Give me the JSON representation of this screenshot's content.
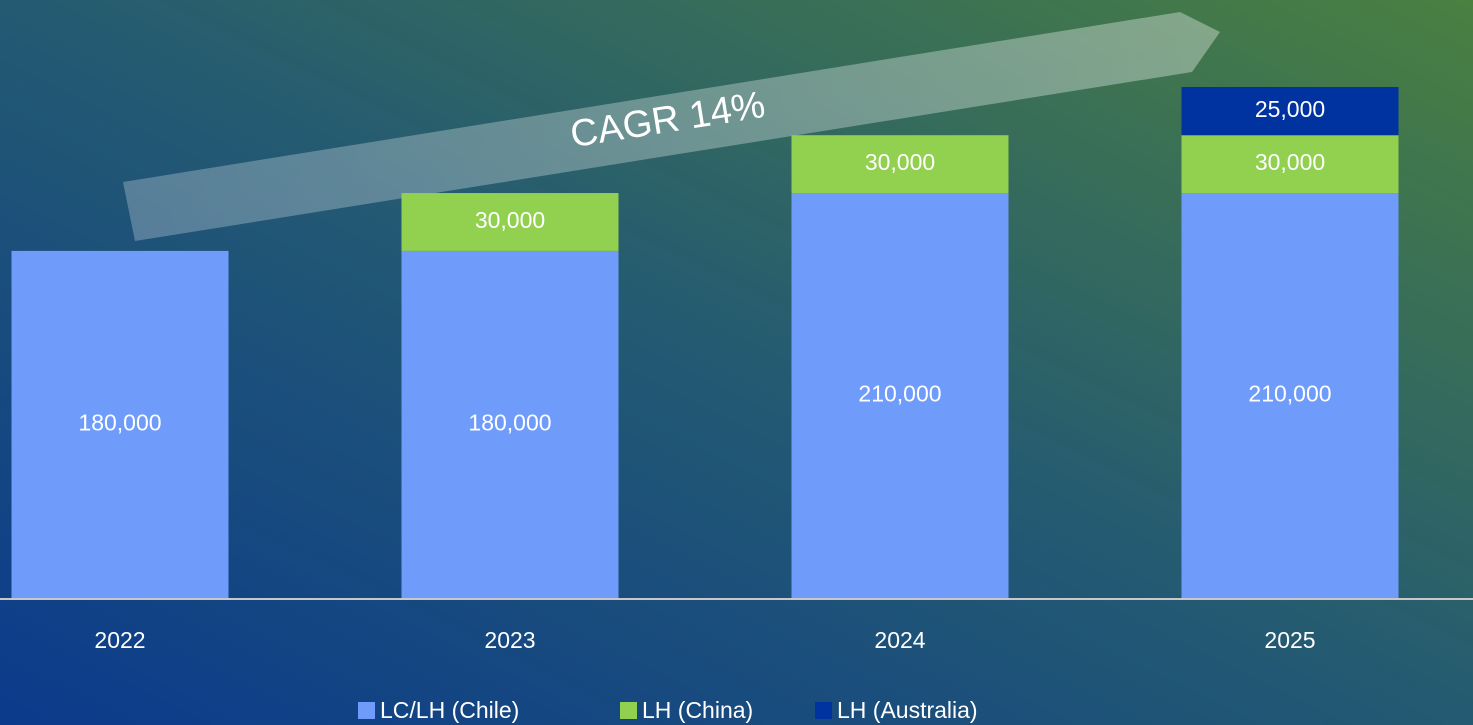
{
  "chart_data": {
    "type": "stacked_bar",
    "categories": [
      "2022",
      "2023",
      "2024",
      "2025"
    ],
    "series": [
      {
        "name": "LC/LH (Chile)",
        "color": "#6f9cfb",
        "values": [
          180000,
          180000,
          210000,
          210000
        ]
      },
      {
        "name": "LH (China)",
        "color": "#92d050",
        "values": [
          null,
          30000,
          30000,
          30000
        ]
      },
      {
        "name": "LH (Australia)",
        "color": "#0033a0",
        "values": [
          null,
          null,
          null,
          25000
        ]
      }
    ],
    "value_labels": [
      [
        "180,000",
        "180,000",
        "210,000",
        "210,000"
      ],
      [
        null,
        "30,000",
        "30,000",
        "30,000"
      ],
      [
        null,
        null,
        null,
        "25,000"
      ]
    ],
    "annotations": [
      "CAGR 14%"
    ],
    "legend": "bottom"
  }
}
